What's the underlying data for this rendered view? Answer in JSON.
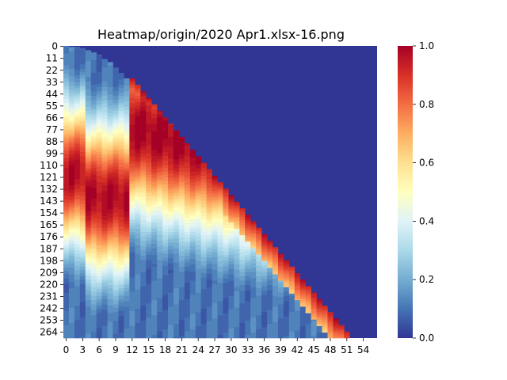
{
  "chart_data": {
    "type": "heatmap",
    "title": "Heatmap/origin/2020 Apr1.xlsx-16.png",
    "xlabel": "",
    "ylabel": "",
    "rows": 270,
    "cols": 57,
    "x_ticks": [
      0,
      3,
      6,
      9,
      12,
      15,
      18,
      21,
      24,
      27,
      30,
      33,
      36,
      39,
      42,
      45,
      48,
      51,
      54
    ],
    "y_ticks": [
      0,
      11,
      22,
      33,
      44,
      55,
      66,
      77,
      88,
      99,
      110,
      121,
      132,
      143,
      154,
      165,
      176,
      187,
      198,
      209,
      220,
      231,
      242,
      253,
      264
    ],
    "colorbar": {
      "min": 0.0,
      "max": 1.0,
      "ticks": [
        "0.0",
        "0.2",
        "0.4",
        "0.6",
        "0.8",
        "1.0"
      ],
      "colormap": "RdYlBu_r",
      "stops": [
        "#313695",
        "#4575b4",
        "#74add1",
        "#abd9e9",
        "#e0f3f8",
        "#ffffbf",
        "#fee090",
        "#fdae61",
        "#f46d43",
        "#d73027",
        "#a50026"
      ]
    },
    "structure": {
      "filled_region": "lower-left triangle; values 0 above boundary",
      "boundary_col_at_row_0": 11,
      "boundary_col_at_row_269": 52,
      "boundary_row_range_through_col_11": [
        0,
        30
      ],
      "band_peak_rows": {
        "col_0_to_3": 118,
        "col_4_to_11": 140,
        "col_12_plus": 75
      },
      "approx_values": [
        {
          "row": 0,
          "col": 0,
          "value": 0.25
        },
        {
          "row": 44,
          "col": 0,
          "value": 0.65
        },
        {
          "row": 88,
          "col": 0,
          "value": 0.95
        },
        {
          "row": 198,
          "col": 0,
          "value": 0.45
        },
        {
          "row": 264,
          "col": 0,
          "value": 0.15
        },
        {
          "row": 55,
          "col": 6,
          "value": 0.55
        },
        {
          "row": 132,
          "col": 6,
          "value": 0.95
        },
        {
          "row": 220,
          "col": 6,
          "value": 0.45
        },
        {
          "row": 55,
          "col": 12,
          "value": 0.75
        },
        {
          "row": 88,
          "col": 12,
          "value": 1.0
        },
        {
          "row": 198,
          "col": 12,
          "value": 0.45
        },
        {
          "row": 253,
          "col": 12,
          "value": 0.2
        },
        {
          "row": 264,
          "col": 50,
          "value": 1.0
        }
      ]
    }
  }
}
